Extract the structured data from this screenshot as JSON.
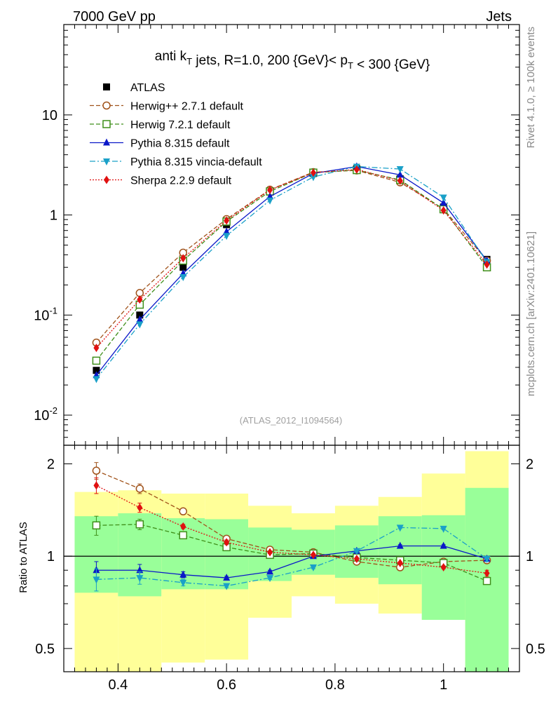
{
  "header": {
    "left": "7000 GeV pp",
    "right": "Jets"
  },
  "side": {
    "rivet": "Rivet 4.1.0, ≥ 100k events",
    "mcplots": "mcplots.cern.ch [arXiv:2401.10621]"
  },
  "chart_data": {
    "type": "line",
    "title": "anti k_T jets, R=1.0,  200 {GeV}< p_T < 300 {GeV}",
    "analysis_label": "(ATLAS_2012_I1094564)",
    "xlim": [
      0.3,
      1.14
    ],
    "main_ylim": [
      0.005,
      80
    ],
    "main_yscale": "log",
    "main_yticks": [
      {
        "v": 0.01,
        "b": "10",
        "e": "-2"
      },
      {
        "v": 0.1,
        "b": "10",
        "e": "-1"
      },
      {
        "v": 1,
        "b": "1",
        "e": ""
      },
      {
        "v": 10,
        "b": "10",
        "e": ""
      }
    ],
    "ratio_ylabel": "Ratio to ATLAS",
    "ratio_ylim": [
      0.42,
      2.3
    ],
    "ratio_yscale": "log",
    "ratio_yticks": [
      {
        "v": 0.5,
        "label": "0.5"
      },
      {
        "v": 1,
        "label": "1"
      },
      {
        "v": 2,
        "label": "2"
      }
    ],
    "xticks": [
      {
        "v": 0.4,
        "label": "0.4"
      },
      {
        "v": 0.6,
        "label": "0.6"
      },
      {
        "v": 0.8,
        "label": "0.8"
      },
      {
        "v": 1.0,
        "label": "1"
      }
    ],
    "x": [
      0.36,
      0.44,
      0.52,
      0.6,
      0.68,
      0.76,
      0.84,
      0.92,
      1.0,
      1.08
    ],
    "bin_edges": [
      0.32,
      0.4,
      0.48,
      0.56,
      0.64,
      0.72,
      0.8,
      0.88,
      0.96,
      1.04,
      1.12
    ],
    "band_yellow": [
      [
        0.4,
        1.62
      ],
      [
        0.38,
        1.64
      ],
      [
        0.45,
        1.6
      ],
      [
        0.46,
        1.6
      ],
      [
        0.63,
        1.46
      ],
      [
        0.74,
        1.38
      ],
      [
        0.7,
        1.46
      ],
      [
        0.65,
        1.56
      ],
      [
        0.62,
        1.86
      ],
      [
        0.36,
        2.2
      ]
    ],
    "band_green": [
      [
        0.76,
        1.35
      ],
      [
        0.74,
        1.38
      ],
      [
        0.78,
        1.33
      ],
      [
        0.78,
        1.32
      ],
      [
        0.83,
        1.24
      ],
      [
        0.87,
        1.22
      ],
      [
        0.85,
        1.26
      ],
      [
        0.81,
        1.35
      ],
      [
        0.62,
        1.36
      ],
      [
        0.36,
        1.67
      ]
    ],
    "series": [
      {
        "name": "ATLAS",
        "color": "#000000",
        "marker": "square-filled",
        "line": "none",
        "values": [
          0.028,
          0.1,
          0.3,
          0.8,
          1.7,
          2.6,
          2.9,
          2.3,
          1.2,
          0.36
        ],
        "ratio": null
      },
      {
        "name": "Herwig++ 2.7.1 default",
        "color": "#a0521a",
        "marker": "circle-open",
        "line": "dashed",
        "values": [
          0.053,
          0.166,
          0.42,
          0.91,
          1.79,
          2.68,
          2.79,
          2.12,
          1.15,
          0.35
        ],
        "ratio": [
          1.9,
          1.66,
          1.4,
          1.14,
          1.05,
          1.03,
          0.96,
          0.92,
          0.96,
          0.97
        ],
        "ratio_err": [
          0.12,
          0.06,
          0.02,
          0.02,
          0.01,
          0.01,
          0.01,
          0.01,
          0.01,
          0.02
        ]
      },
      {
        "name": "Herwig 7.2.1 default",
        "color": "#3f8f1a",
        "marker": "square-open",
        "line": "dashed",
        "values": [
          0.035,
          0.127,
          0.35,
          0.86,
          1.72,
          2.65,
          2.81,
          2.24,
          1.14,
          0.3
        ],
        "ratio": [
          1.26,
          1.27,
          1.17,
          1.07,
          1.01,
          1.02,
          0.99,
          0.97,
          0.95,
          0.83
        ],
        "ratio_err": [
          0.09,
          0.05,
          0.02,
          0.02,
          0.01,
          0.01,
          0.01,
          0.01,
          0.01,
          0.02
        ]
      },
      {
        "name": "Pythia 8.315 default",
        "color": "#0a18c8",
        "marker": "triangle-up-filled",
        "line": "solid",
        "values": [
          0.025,
          0.09,
          0.26,
          0.68,
          1.53,
          2.6,
          3.05,
          2.52,
          1.32,
          0.35
        ],
        "ratio": [
          0.9,
          0.9,
          0.87,
          0.85,
          0.89,
          1.0,
          1.04,
          1.08,
          1.08,
          0.98
        ],
        "ratio_err": [
          0.06,
          0.04,
          0.02,
          0.01,
          0.01,
          0.01,
          0.01,
          0.01,
          0.01,
          0.02
        ]
      },
      {
        "name": "Pythia 8.315 vincia-default",
        "color": "#1aa0c8",
        "marker": "triangle-down-filled",
        "line": "dashdot",
        "values": [
          0.023,
          0.081,
          0.24,
          0.62,
          1.4,
          2.4,
          3.05,
          2.88,
          1.5,
          0.34
        ],
        "ratio": [
          0.84,
          0.85,
          0.82,
          0.8,
          0.85,
          0.92,
          1.04,
          1.24,
          1.23,
          0.98
        ],
        "ratio_err": [
          0.07,
          0.04,
          0.02,
          0.01,
          0.01,
          0.01,
          0.01,
          0.01,
          0.01,
          0.02
        ]
      },
      {
        "name": "Sherpa 2.2.9 default",
        "color": "#e01010",
        "marker": "diamond-filled",
        "line": "dotted",
        "values": [
          0.047,
          0.143,
          0.37,
          0.88,
          1.78,
          2.65,
          2.85,
          2.2,
          1.11,
          0.32
        ],
        "ratio": [
          1.7,
          1.44,
          1.25,
          1.11,
          1.03,
          1.01,
          0.98,
          0.95,
          0.92,
          0.88
        ],
        "ratio_err": [
          0.1,
          0.05,
          0.02,
          0.02,
          0.01,
          0.01,
          0.01,
          0.01,
          0.01,
          0.02
        ]
      }
    ]
  }
}
